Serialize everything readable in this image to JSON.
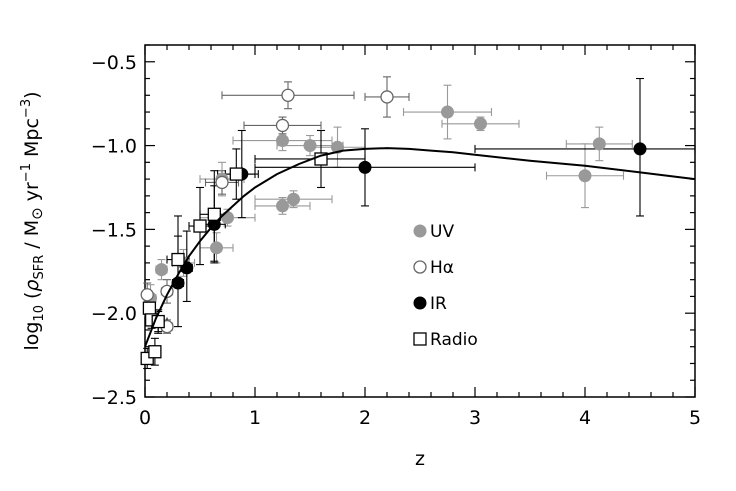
{
  "chart_data": {
    "type": "scatter",
    "title": "",
    "xlabel": "z",
    "ylabel_parts": {
      "prefix": "log",
      "prefix_sub": "10",
      "open": " (",
      "rho": "ρ",
      "rho_sub": "SFR",
      "slash_unit": " / M",
      "sun": "⊙",
      "yr": " yr",
      "yr_exp": "−1",
      "mpc": " Mpc",
      "mpc_exp": "−3",
      "close": ")"
    },
    "xlim": [
      0,
      5
    ],
    "ylim": [
      -2.5,
      -0.4
    ],
    "xticks": [
      0,
      1,
      2,
      3,
      4,
      5
    ],
    "xtick_labels": [
      "0",
      "1",
      "2",
      "3",
      "4",
      "5"
    ],
    "yticks": [
      -2.5,
      -2.0,
      -1.5,
      -1.0,
      -0.5
    ],
    "ytick_labels": [
      "−2.5",
      "−2.0",
      "−1.5",
      "−1.0",
      "−0.5"
    ],
    "grid": false,
    "legend_position": "center-right",
    "series": [
      {
        "name": "UV",
        "marker": "filled-circle",
        "color": "#999999",
        "points": [
          {
            "x": 0.05,
            "y": -1.91,
            "xerr": [
              0.05,
              0.05
            ],
            "yerr": [
              0.08,
              0.08
            ]
          },
          {
            "x": 0.15,
            "y": -1.74,
            "xerr": [
              0.05,
              0.05
            ],
            "yerr": [
              0.06,
              0.06
            ]
          },
          {
            "x": 0.35,
            "y": -1.7,
            "xerr": [
              0.1,
              0.1
            ],
            "yerr": [
              0.08,
              0.08
            ]
          },
          {
            "x": 0.65,
            "y": -1.61,
            "xerr": [
              0.15,
              0.15
            ],
            "yerr": [
              0.09,
              0.09
            ]
          },
          {
            "x": 0.7,
            "y": -1.2,
            "xerr": [
              0.2,
              0.2
            ],
            "yerr": [
              0.1,
              0.1
            ]
          },
          {
            "x": 0.75,
            "y": -1.43,
            "xerr": [
              0.25,
              0.25
            ],
            "yerr": [
              0.05,
              0.05
            ]
          },
          {
            "x": 1.25,
            "y": -0.97,
            "xerr": [
              0.45,
              0.45
            ],
            "yerr": [
              0.06,
              0.06
            ]
          },
          {
            "x": 1.25,
            "y": -1.36,
            "xerr": [
              0.25,
              0.25
            ],
            "yerr": [
              0.05,
              0.05
            ]
          },
          {
            "x": 1.35,
            "y": -1.32,
            "xerr": [
              0.35,
              0.35
            ],
            "yerr": [
              0.05,
              0.05
            ]
          },
          {
            "x": 1.5,
            "y": -1.0,
            "xerr": [
              0.3,
              0.3
            ],
            "yerr": [
              0.06,
              0.06
            ]
          },
          {
            "x": 1.75,
            "y": -1.01,
            "xerr": [
              0.25,
              0.25
            ],
            "yerr": [
              0.12,
              0.12
            ]
          },
          {
            "x": 2.75,
            "y": -0.8,
            "xerr": [
              0.4,
              0.4
            ],
            "yerr": [
              0.16,
              0.16
            ]
          },
          {
            "x": 3.05,
            "y": -0.87,
            "xerr": [
              0.35,
              0.35
            ],
            "yerr": [
              0.04,
              0.04
            ]
          },
          {
            "x": 4.0,
            "y": -1.18,
            "xerr": [
              0.35,
              0.35
            ],
            "yerr": [
              0.19,
              0.19
            ]
          },
          {
            "x": 4.13,
            "y": -0.99,
            "xerr": [
              0.3,
              0.3
            ],
            "yerr": [
              0.1,
              0.1
            ]
          }
        ]
      },
      {
        "name": "Hα",
        "marker": "open-circle",
        "color": "#666666",
        "points": [
          {
            "x": 0.02,
            "y": -1.89,
            "xerr": [
              0.02,
              0.02
            ],
            "yerr": [
              0.07,
              0.07
            ]
          },
          {
            "x": 0.05,
            "y": -2.0,
            "xerr": [
              0.04,
              0.04
            ],
            "yerr": [
              0.07,
              0.07
            ]
          },
          {
            "x": 0.2,
            "y": -1.87,
            "xerr": [
              0.05,
              0.05
            ],
            "yerr": [
              0.07,
              0.07
            ]
          },
          {
            "x": 0.2,
            "y": -2.08,
            "xerr": [
              0.05,
              0.05
            ],
            "yerr": [
              0.04,
              0.04
            ]
          },
          {
            "x": 0.7,
            "y": -1.22,
            "xerr": [
              0.15,
              0.15
            ],
            "yerr": [
              0.07,
              0.07
            ]
          },
          {
            "x": 1.25,
            "y": -0.88,
            "xerr": [
              0.35,
              0.35
            ],
            "yerr": [
              0.05,
              0.05
            ]
          },
          {
            "x": 1.3,
            "y": -0.7,
            "xerr": [
              0.6,
              0.6
            ],
            "yerr": [
              0.08,
              0.08
            ]
          },
          {
            "x": 2.2,
            "y": -0.71,
            "xerr": [
              0.2,
              0.2
            ],
            "yerr": [
              0.12,
              0.12
            ]
          }
        ]
      },
      {
        "name": "IR",
        "marker": "filled-circle",
        "color": "#000000",
        "points": [
          {
            "x": 0.12,
            "y": -2.05,
            "xerr": [
              0.08,
              0.08
            ],
            "yerr": [
              0.07,
              0.07
            ]
          },
          {
            "x": 0.3,
            "y": -1.82,
            "xerr": [
              0.05,
              0.05
            ],
            "yerr": [
              0.26,
              0.4
            ]
          },
          {
            "x": 0.38,
            "y": -1.73,
            "xerr": [
              0.05,
              0.05
            ],
            "yerr": [
              0.2,
              0.22
            ]
          },
          {
            "x": 0.63,
            "y": -1.47,
            "xerr": [
              0.1,
              0.1
            ],
            "yerr": [
              0.23,
              0.23
            ]
          },
          {
            "x": 0.88,
            "y": -1.17,
            "xerr": [
              0.15,
              0.15
            ],
            "yerr": [
              0.26,
              0.26
            ]
          },
          {
            "x": 2.0,
            "y": -1.13,
            "xerr": [
              1.0,
              1.0
            ],
            "yerr": [
              0.23,
              0.23
            ]
          },
          {
            "x": 4.5,
            "y": -1.02,
            "xerr": [
              1.5,
              1.5
            ],
            "yerr": [
              0.4,
              0.42
            ]
          }
        ]
      },
      {
        "name": "Radio",
        "marker": "open-square",
        "color": "#000000",
        "points": [
          {
            "x": 0.02,
            "y": -2.27,
            "xerr": [
              0.02,
              0.02
            ],
            "yerr": [
              0.06,
              0.06
            ]
          },
          {
            "x": 0.04,
            "y": -1.97,
            "xerr": [
              0.03,
              0.03
            ],
            "yerr": [
              0.05,
              0.05
            ]
          },
          {
            "x": 0.06,
            "y": -2.04,
            "xerr": [
              0.04,
              0.04
            ],
            "yerr": [
              0.05,
              0.05
            ]
          },
          {
            "x": 0.09,
            "y": -2.23,
            "xerr": [
              0.05,
              0.05
            ],
            "yerr": [
              0.08,
              0.08
            ]
          },
          {
            "x": 0.12,
            "y": -2.05,
            "xerr": [
              0.05,
              0.05
            ],
            "yerr": [
              0.06,
              0.06
            ]
          },
          {
            "x": 0.3,
            "y": -1.68,
            "xerr": [
              0.1,
              0.1
            ],
            "yerr": [
              0.14,
              0.14
            ]
          },
          {
            "x": 0.5,
            "y": -1.48,
            "xerr": [
              0.1,
              0.1
            ],
            "yerr": [
              0.23,
              0.23
            ]
          },
          {
            "x": 0.63,
            "y": -1.41,
            "xerr": [
              0.13,
              0.13
            ],
            "yerr": [
              0.28,
              0.26
            ]
          },
          {
            "x": 0.83,
            "y": -1.17,
            "xerr": [
              0.17,
              0.17
            ],
            "yerr": [
              0.15,
              0.15
            ]
          },
          {
            "x": 1.6,
            "y": -1.08,
            "xerr": [
              0.6,
              0.4
            ],
            "yerr": [
              0.17,
              0.17
            ]
          }
        ]
      },
      {
        "name": "",
        "type": "line",
        "color": "#000000",
        "x": [
          0.0,
          0.1,
          0.2,
          0.3,
          0.4,
          0.5,
          0.6,
          0.7,
          0.8,
          0.9,
          1.0,
          1.2,
          1.4,
          1.6,
          1.8,
          2.0,
          2.2,
          2.4,
          2.6,
          2.8,
          3.0,
          3.5,
          4.0,
          4.5,
          5.0
        ],
        "y": [
          -2.2,
          -2.03,
          -1.89,
          -1.77,
          -1.66,
          -1.57,
          -1.49,
          -1.42,
          -1.36,
          -1.3,
          -1.25,
          -1.17,
          -1.11,
          -1.06,
          -1.03,
          -1.02,
          -1.015,
          -1.02,
          -1.03,
          -1.04,
          -1.055,
          -1.09,
          -1.12,
          -1.16,
          -1.2
        ]
      }
    ]
  }
}
